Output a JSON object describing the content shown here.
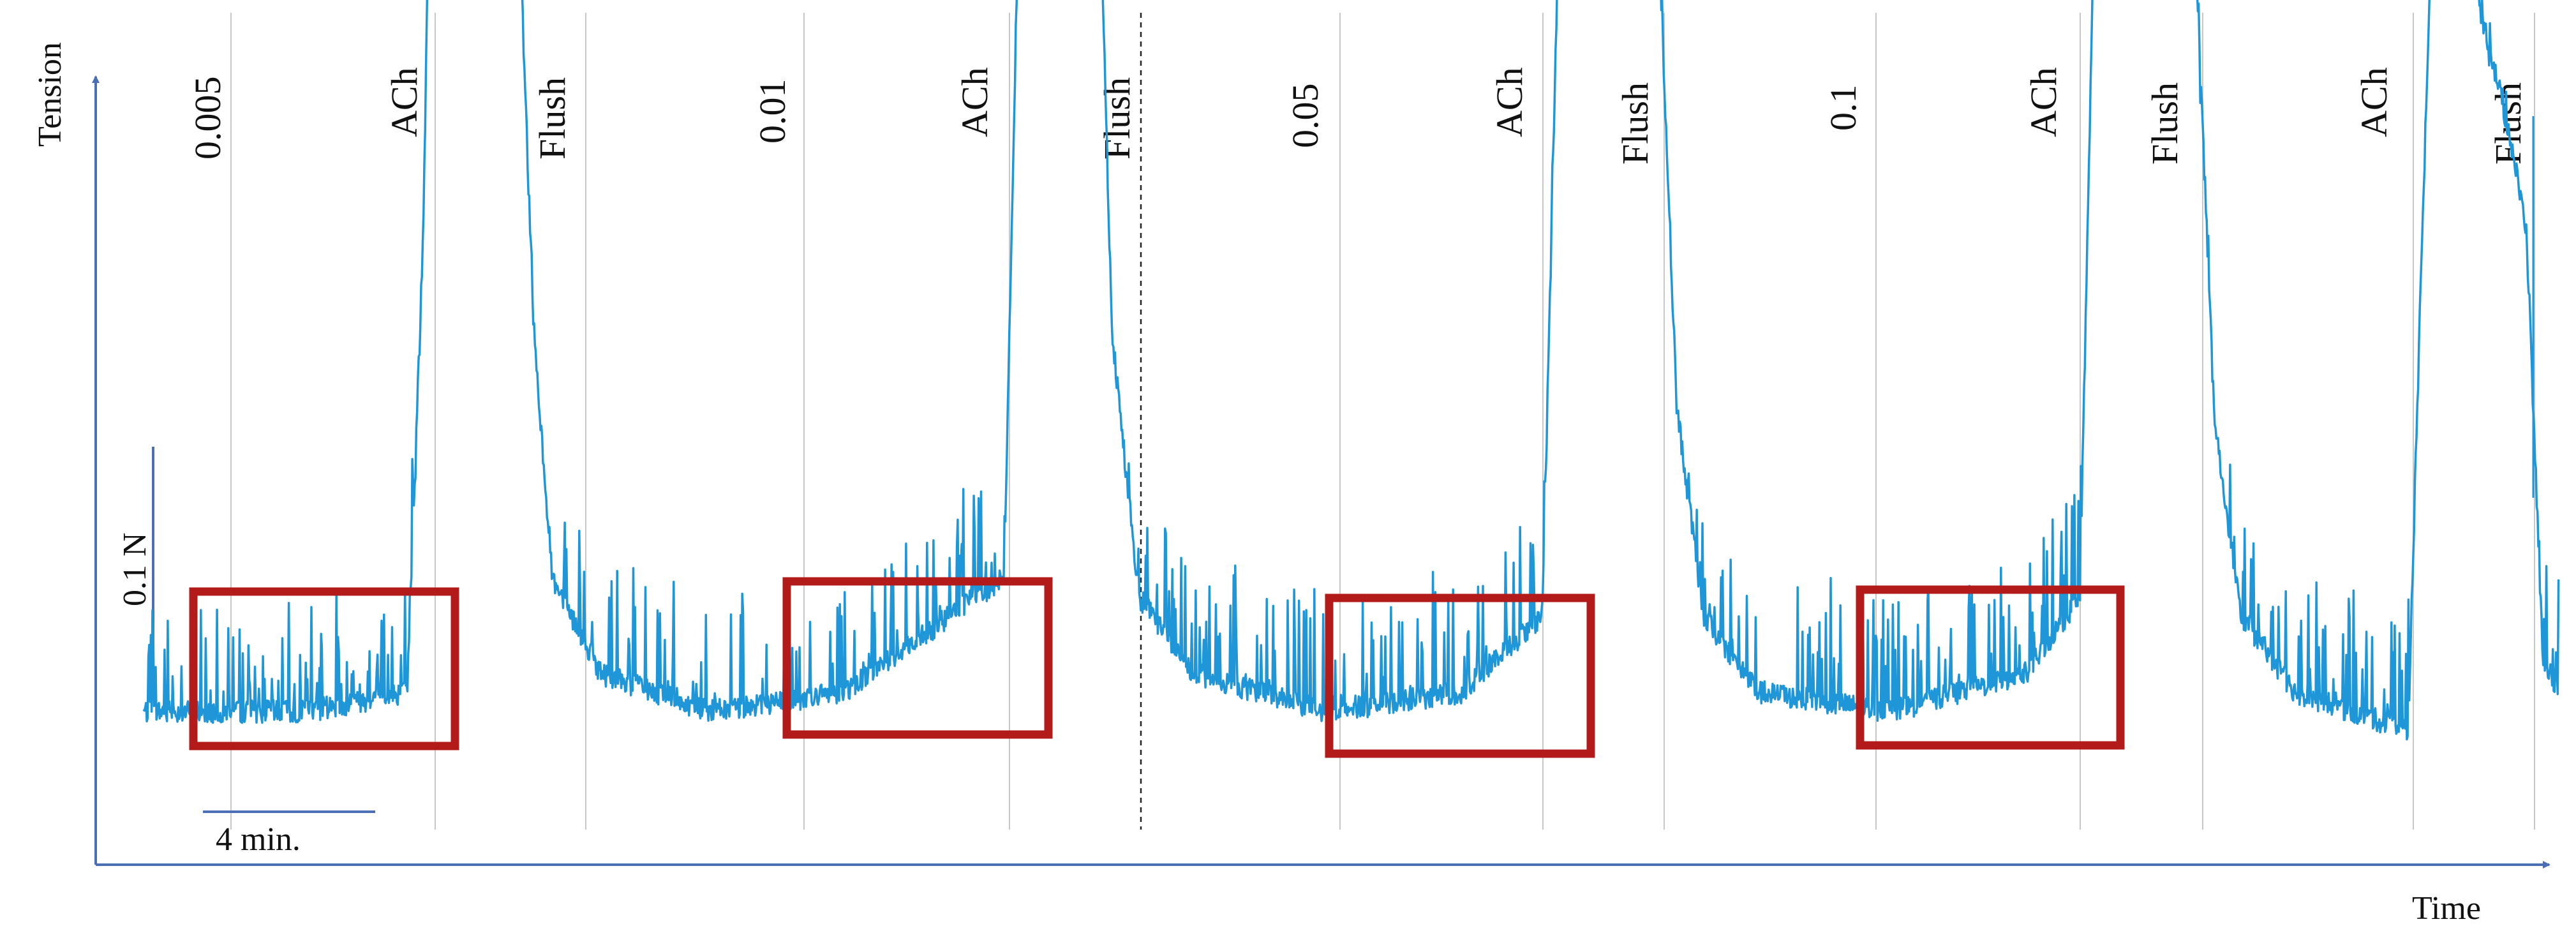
{
  "chart_data": {
    "type": "line",
    "ylabel": "Tension",
    "xlabel": "Time",
    "scale_bars": {
      "vertical_label": "0.1 N",
      "horizontal_label": "4 min."
    },
    "event_labels": [
      "0.005",
      "ACh",
      "Flush",
      "0.01",
      "ACh",
      "Flush",
      "0.05",
      "ACh",
      "Flush",
      "0.1",
      "ACh",
      "Flush",
      "ACh",
      "Flush"
    ],
    "series": [
      {
        "values": [
          [
            0,
            0.0
          ],
          [
            4,
            0.0
          ],
          [
            6,
            0.0
          ],
          [
            9.8,
            0.01
          ],
          [
            10.4,
            0.25
          ],
          [
            10.8,
            0.58
          ],
          [
            11.4,
            0.56
          ],
          [
            12.5,
            0.49
          ],
          [
            13.8,
            0.4
          ],
          [
            14.0,
            0.4
          ],
          [
            14.5,
            0.2
          ],
          [
            15.2,
            0.07
          ],
          [
            17,
            0.02
          ],
          [
            21,
            0.0
          ],
          [
            26,
            0.01
          ],
          [
            32.0,
            0.07
          ],
          [
            32.5,
            0.4
          ],
          [
            32.9,
            0.59
          ],
          [
            34.0,
            0.52
          ],
          [
            35.0,
            0.44
          ],
          [
            35.6,
            0.41
          ],
          [
            36.0,
            0.2
          ],
          [
            37.0,
            0.06
          ],
          [
            39,
            0.02
          ],
          [
            44,
            0.0
          ],
          [
            49,
            0.01
          ],
          [
            52.0,
            0.05
          ],
          [
            52.6,
            0.4
          ],
          [
            53.1,
            0.61
          ],
          [
            54.5,
            0.52
          ],
          [
            56.3,
            0.42
          ],
          [
            57.0,
            0.16
          ],
          [
            58.0,
            0.05
          ],
          [
            60,
            0.01
          ],
          [
            65,
            0.0
          ],
          [
            70,
            0.02
          ],
          [
            72.0,
            0.06
          ],
          [
            72.5,
            0.4
          ],
          [
            73.0,
            0.62
          ],
          [
            74.5,
            0.53
          ],
          [
            76.2,
            0.43
          ],
          [
            77.0,
            0.15
          ],
          [
            78.0,
            0.05
          ],
          [
            80,
            0.01
          ],
          [
            84.2,
            -0.01
          ],
          [
            84.7,
            0.24
          ],
          [
            85.2,
            0.46
          ],
          [
            86.5,
            0.39
          ],
          [
            88.0,
            0.3
          ],
          [
            88.6,
            0.25
          ],
          [
            89.2,
            0.03
          ],
          [
            89.8,
            0.01
          ]
        ]
      }
    ],
    "colors": {
      "trace": "#1f96d8",
      "highlight": "#b31b1b",
      "axis": "#4a6fb5",
      "event_line": "#c8c8c8"
    }
  }
}
